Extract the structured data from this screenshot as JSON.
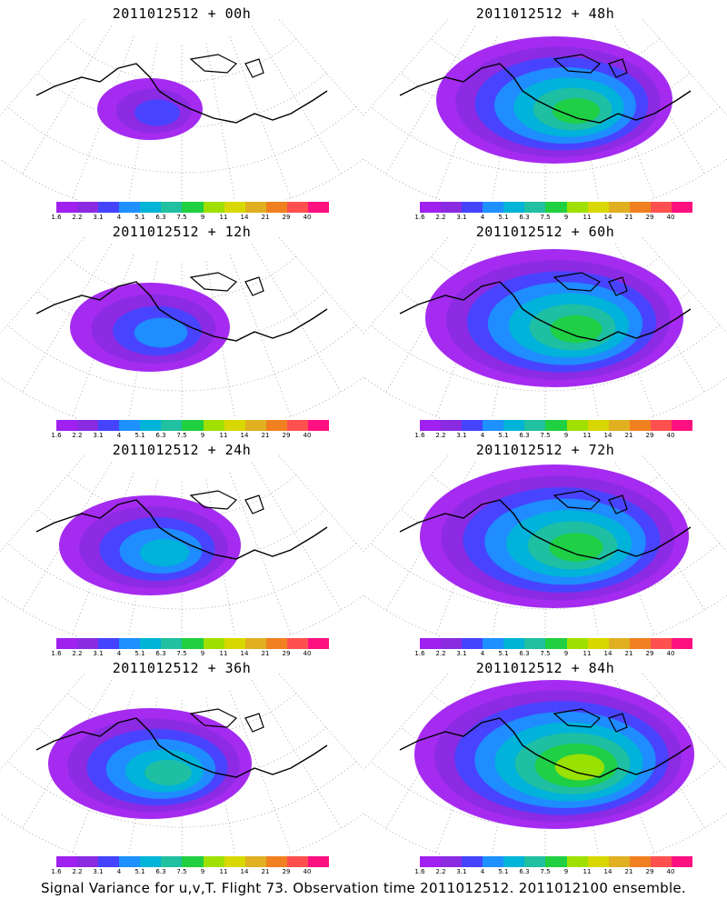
{
  "panels": [
    {
      "title": "2011012512 + 00h",
      "spread": 0.15
    },
    {
      "title": "2011012512 + 48h",
      "spread": 0.75
    },
    {
      "title": "2011012512 + 12h",
      "spread": 0.4
    },
    {
      "title": "2011012512 + 60h",
      "spread": 0.85
    },
    {
      "title": "2011012512 + 24h",
      "spread": 0.5
    },
    {
      "title": "2011012512 + 72h",
      "spread": 0.9
    },
    {
      "title": "2011012512 + 36h",
      "spread": 0.6
    },
    {
      "title": "2011012512 + 84h",
      "spread": 0.95
    }
  ],
  "colorbar": {
    "labels": [
      "1.6",
      "2.2",
      "3.1",
      "4",
      "5.1",
      "6.3",
      "7.5",
      "9",
      "11",
      "14",
      "21",
      "29",
      "40"
    ],
    "colors": [
      "#a020f0",
      "#8a2be2",
      "#4444ff",
      "#1e90ff",
      "#00b4d8",
      "#20c0a0",
      "#20d040",
      "#a0e000",
      "#d8d800",
      "#e0b020",
      "#f08020",
      "#ff5050",
      "#ff1080"
    ]
  },
  "caption": "Signal Variance for u,v,T. Flight 73. Observation time 2011012512. 2011012100 ensemble."
}
